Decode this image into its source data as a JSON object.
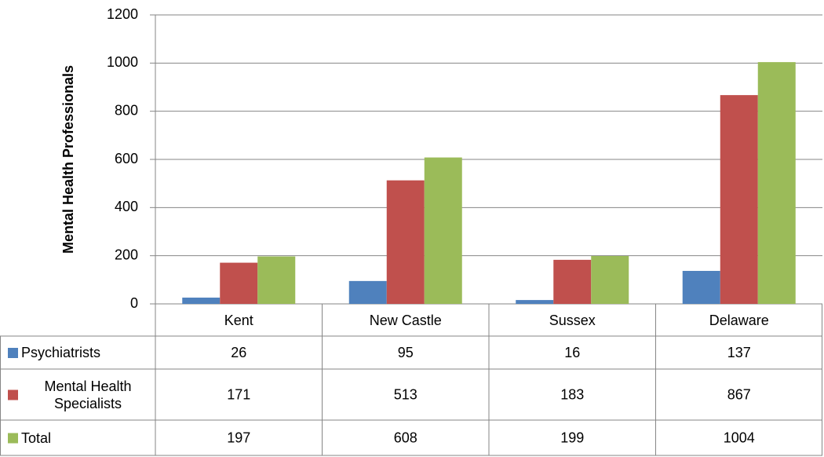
{
  "chart_data": {
    "type": "bar",
    "y_label": "Mental Health Professionals",
    "categories": [
      "Kent",
      "New Castle",
      "Sussex",
      "Delaware"
    ],
    "series": [
      {
        "name": "Psychiatrists",
        "color": "#4f81bd",
        "values": [
          26,
          95,
          16,
          137
        ]
      },
      {
        "name": "Mental Health Specialists",
        "color": "#c0504d",
        "values": [
          171,
          513,
          183,
          867
        ]
      },
      {
        "name": "Total",
        "color": "#9bbb59",
        "values": [
          197,
          608,
          199,
          1004
        ]
      }
    ],
    "ylim": [
      0,
      1200
    ],
    "yticks": [
      0,
      200,
      400,
      600,
      800,
      1000,
      1200
    ],
    "grid": true
  }
}
